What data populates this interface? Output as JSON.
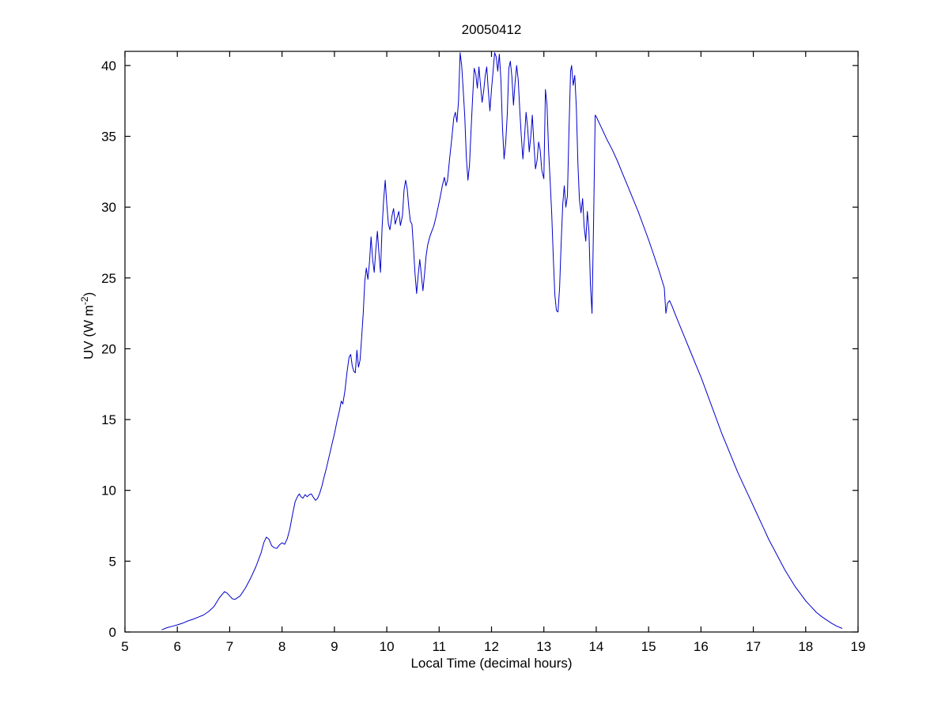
{
  "figure": {
    "background": "#ffffff"
  },
  "chart_data": {
    "type": "line",
    "title": "20050412",
    "xlabel": "Local Time (decimal hours)",
    "ylabel_parts": {
      "main": "UV (W m",
      "sup": "-2",
      "end": ")"
    },
    "xlim": [
      5,
      19
    ],
    "ylim": [
      0,
      41
    ],
    "x_ticks": [
      5,
      6,
      7,
      8,
      9,
      10,
      11,
      12,
      13,
      14,
      15,
      16,
      17,
      18,
      19
    ],
    "y_ticks": [
      0,
      5,
      10,
      15,
      20,
      25,
      30,
      35,
      40
    ],
    "grid": false,
    "legend_position": "none",
    "line_color": "#0000CC",
    "series": [
      {
        "name": "UV",
        "points": [
          [
            5.7,
            0.15
          ],
          [
            5.8,
            0.3
          ],
          [
            5.9,
            0.4
          ],
          [
            6.0,
            0.5
          ],
          [
            6.1,
            0.62
          ],
          [
            6.2,
            0.78
          ],
          [
            6.3,
            0.9
          ],
          [
            6.4,
            1.05
          ],
          [
            6.5,
            1.2
          ],
          [
            6.6,
            1.45
          ],
          [
            6.7,
            1.8
          ],
          [
            6.8,
            2.4
          ],
          [
            6.9,
            2.85
          ],
          [
            6.95,
            2.75
          ],
          [
            7.0,
            2.55
          ],
          [
            7.05,
            2.35
          ],
          [
            7.1,
            2.3
          ],
          [
            7.2,
            2.55
          ],
          [
            7.3,
            3.1
          ],
          [
            7.4,
            3.8
          ],
          [
            7.5,
            4.6
          ],
          [
            7.6,
            5.6
          ],
          [
            7.65,
            6.3
          ],
          [
            7.7,
            6.7
          ],
          [
            7.75,
            6.55
          ],
          [
            7.8,
            6.1
          ],
          [
            7.85,
            5.95
          ],
          [
            7.9,
            5.9
          ],
          [
            7.95,
            6.15
          ],
          [
            8.0,
            6.3
          ],
          [
            8.05,
            6.2
          ],
          [
            8.1,
            6.6
          ],
          [
            8.15,
            7.3
          ],
          [
            8.2,
            8.3
          ],
          [
            8.25,
            9.2
          ],
          [
            8.3,
            9.6
          ],
          [
            8.33,
            9.75
          ],
          [
            8.36,
            9.55
          ],
          [
            8.4,
            9.45
          ],
          [
            8.44,
            9.7
          ],
          [
            8.48,
            9.55
          ],
          [
            8.52,
            9.7
          ],
          [
            8.56,
            9.75
          ],
          [
            8.6,
            9.5
          ],
          [
            8.64,
            9.3
          ],
          [
            8.68,
            9.45
          ],
          [
            8.72,
            9.8
          ],
          [
            8.76,
            10.3
          ],
          [
            8.8,
            10.9
          ],
          [
            8.85,
            11.6
          ],
          [
            8.9,
            12.4
          ],
          [
            8.95,
            13.2
          ],
          [
            9.0,
            14.0
          ],
          [
            9.05,
            14.9
          ],
          [
            9.1,
            15.7
          ],
          [
            9.13,
            16.3
          ],
          [
            9.16,
            16.1
          ],
          [
            9.2,
            17.0
          ],
          [
            9.24,
            18.3
          ],
          [
            9.28,
            19.4
          ],
          [
            9.31,
            19.6
          ],
          [
            9.34,
            18.8
          ],
          [
            9.37,
            18.4
          ],
          [
            9.4,
            18.3
          ],
          [
            9.43,
            19.9
          ],
          [
            9.46,
            18.7
          ],
          [
            9.49,
            19.2
          ],
          [
            9.52,
            20.8
          ],
          [
            9.55,
            22.5
          ],
          [
            9.58,
            24.8
          ],
          [
            9.61,
            25.7
          ],
          [
            9.64,
            24.9
          ],
          [
            9.67,
            26.1
          ],
          [
            9.7,
            27.9
          ],
          [
            9.73,
            26.3
          ],
          [
            9.76,
            25.4
          ],
          [
            9.79,
            27.0
          ],
          [
            9.82,
            28.3
          ],
          [
            9.85,
            26.8
          ],
          [
            9.88,
            25.4
          ],
          [
            9.91,
            28.5
          ],
          [
            9.94,
            30.5
          ],
          [
            9.97,
            31.9
          ],
          [
            10.0,
            30.2
          ],
          [
            10.03,
            28.8
          ],
          [
            10.06,
            28.4
          ],
          [
            10.1,
            29.4
          ],
          [
            10.13,
            29.9
          ],
          [
            10.16,
            28.8
          ],
          [
            10.2,
            29.3
          ],
          [
            10.23,
            29.7
          ],
          [
            10.26,
            28.7
          ],
          [
            10.3,
            29.4
          ],
          [
            10.33,
            31.2
          ],
          [
            10.36,
            31.9
          ],
          [
            10.39,
            31.3
          ],
          [
            10.42,
            30.0
          ],
          [
            10.45,
            29.0
          ],
          [
            10.48,
            28.8
          ],
          [
            10.51,
            27.2
          ],
          [
            10.54,
            25.3
          ],
          [
            10.57,
            23.9
          ],
          [
            10.6,
            25.2
          ],
          [
            10.63,
            26.3
          ],
          [
            10.66,
            25.2
          ],
          [
            10.69,
            24.1
          ],
          [
            10.72,
            25.2
          ],
          [
            10.75,
            26.5
          ],
          [
            10.78,
            27.3
          ],
          [
            10.82,
            27.9
          ],
          [
            10.86,
            28.3
          ],
          [
            10.9,
            28.7
          ],
          [
            10.94,
            29.3
          ],
          [
            10.98,
            30.0
          ],
          [
            11.02,
            30.7
          ],
          [
            11.06,
            31.5
          ],
          [
            11.1,
            32.1
          ],
          [
            11.13,
            31.5
          ],
          [
            11.16,
            31.9
          ],
          [
            11.2,
            33.4
          ],
          [
            11.24,
            34.8
          ],
          [
            11.28,
            36.3
          ],
          [
            11.31,
            36.7
          ],
          [
            11.34,
            36.0
          ],
          [
            11.37,
            37.5
          ],
          [
            11.4,
            40.9
          ],
          [
            11.43,
            40.0
          ],
          [
            11.46,
            38.3
          ],
          [
            11.49,
            36.4
          ],
          [
            11.52,
            33.5
          ],
          [
            11.55,
            31.9
          ],
          [
            11.58,
            33.0
          ],
          [
            11.61,
            35.5
          ],
          [
            11.64,
            37.8
          ],
          [
            11.67,
            39.8
          ],
          [
            11.7,
            39.4
          ],
          [
            11.73,
            38.4
          ],
          [
            11.76,
            39.9
          ],
          [
            11.79,
            38.6
          ],
          [
            11.82,
            37.4
          ],
          [
            11.85,
            38.2
          ],
          [
            11.88,
            39.3
          ],
          [
            11.91,
            39.9
          ],
          [
            11.94,
            38.2
          ],
          [
            11.97,
            36.8
          ],
          [
            12.0,
            38.3
          ],
          [
            12.03,
            39.6
          ],
          [
            12.06,
            40.9
          ],
          [
            12.09,
            40.6
          ],
          [
            12.12,
            39.6
          ],
          [
            12.15,
            40.8
          ],
          [
            12.18,
            39.0
          ],
          [
            12.21,
            35.6
          ],
          [
            12.24,
            33.4
          ],
          [
            12.27,
            34.5
          ],
          [
            12.3,
            36.5
          ],
          [
            12.33,
            39.8
          ],
          [
            12.36,
            40.3
          ],
          [
            12.39,
            39.2
          ],
          [
            12.42,
            37.2
          ],
          [
            12.45,
            38.8
          ],
          [
            12.48,
            40.0
          ],
          [
            12.51,
            39.0
          ],
          [
            12.54,
            36.8
          ],
          [
            12.57,
            35.0
          ],
          [
            12.6,
            33.4
          ],
          [
            12.63,
            34.9
          ],
          [
            12.66,
            36.7
          ],
          [
            12.69,
            35.6
          ],
          [
            12.72,
            33.9
          ],
          [
            12.75,
            35.0
          ],
          [
            12.78,
            36.5
          ],
          [
            12.81,
            34.5
          ],
          [
            12.84,
            32.7
          ],
          [
            12.87,
            33.3
          ],
          [
            12.9,
            34.6
          ],
          [
            12.93,
            34.0
          ],
          [
            12.96,
            32.6
          ],
          [
            13.0,
            32.0
          ],
          [
            13.03,
            38.3
          ],
          [
            13.06,
            37.2
          ],
          [
            13.09,
            34.0
          ],
          [
            13.12,
            31.8
          ],
          [
            13.15,
            29.6
          ],
          [
            13.18,
            26.5
          ],
          [
            13.21,
            23.8
          ],
          [
            13.24,
            22.7
          ],
          [
            13.27,
            22.6
          ],
          [
            13.3,
            24.3
          ],
          [
            13.33,
            27.5
          ],
          [
            13.36,
            30.2
          ],
          [
            13.39,
            31.5
          ],
          [
            13.42,
            30.0
          ],
          [
            13.45,
            30.8
          ],
          [
            13.48,
            35.5
          ],
          [
            13.51,
            39.6
          ],
          [
            13.53,
            40.0
          ],
          [
            13.56,
            38.6
          ],
          [
            13.59,
            39.3
          ],
          [
            13.62,
            37.0
          ],
          [
            13.65,
            33.0
          ],
          [
            13.68,
            30.5
          ],
          [
            13.71,
            29.6
          ],
          [
            13.74,
            30.6
          ],
          [
            13.77,
            28.6
          ],
          [
            13.8,
            27.6
          ],
          [
            13.83,
            29.7
          ],
          [
            13.86,
            28.3
          ],
          [
            13.89,
            24.5
          ],
          [
            13.92,
            22.5
          ],
          [
            13.95,
            29.0
          ],
          [
            13.98,
            36.5
          ],
          [
            14.0,
            36.4
          ],
          [
            14.1,
            35.6
          ],
          [
            14.2,
            34.8
          ],
          [
            14.3,
            34.1
          ],
          [
            14.4,
            33.3
          ],
          [
            14.5,
            32.4
          ],
          [
            14.6,
            31.5
          ],
          [
            14.7,
            30.6
          ],
          [
            14.8,
            29.7
          ],
          [
            14.9,
            28.7
          ],
          [
            15.0,
            27.7
          ],
          [
            15.1,
            26.6
          ],
          [
            15.2,
            25.5
          ],
          [
            15.25,
            24.9
          ],
          [
            15.3,
            24.3
          ],
          [
            15.33,
            22.5
          ],
          [
            15.36,
            23.2
          ],
          [
            15.4,
            23.4
          ],
          [
            15.45,
            23.0
          ],
          [
            15.5,
            22.5
          ],
          [
            15.6,
            21.6
          ],
          [
            15.7,
            20.7
          ],
          [
            15.8,
            19.8
          ],
          [
            15.9,
            18.9
          ],
          [
            16.0,
            18.0
          ],
          [
            16.1,
            17.0
          ],
          [
            16.2,
            16.0
          ],
          [
            16.3,
            15.0
          ],
          [
            16.4,
            14.0
          ],
          [
            16.5,
            13.1
          ],
          [
            16.6,
            12.2
          ],
          [
            16.7,
            11.3
          ],
          [
            16.8,
            10.5
          ],
          [
            16.9,
            9.7
          ],
          [
            17.0,
            8.9
          ],
          [
            17.1,
            8.1
          ],
          [
            17.2,
            7.3
          ],
          [
            17.3,
            6.5
          ],
          [
            17.4,
            5.8
          ],
          [
            17.5,
            5.1
          ],
          [
            17.6,
            4.4
          ],
          [
            17.7,
            3.8
          ],
          [
            17.8,
            3.2
          ],
          [
            17.9,
            2.7
          ],
          [
            18.0,
            2.2
          ],
          [
            18.1,
            1.8
          ],
          [
            18.2,
            1.4
          ],
          [
            18.3,
            1.1
          ],
          [
            18.4,
            0.85
          ],
          [
            18.5,
            0.6
          ],
          [
            18.6,
            0.4
          ],
          [
            18.7,
            0.25
          ]
        ]
      }
    ]
  }
}
